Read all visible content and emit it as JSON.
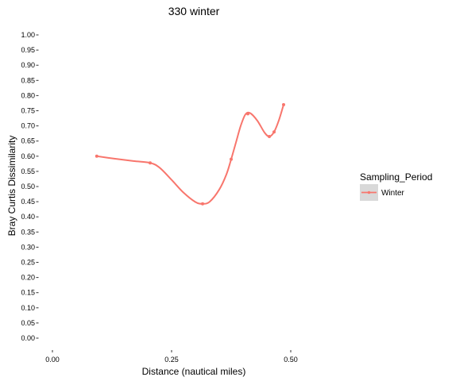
{
  "chart_data": {
    "type": "line",
    "title": "330 winter",
    "xlabel": "Distance (nautical miles)",
    "ylabel": "Bray Curtis Dissimilarity",
    "xlim": [
      0,
      0.5
    ],
    "ylim": [
      0,
      1
    ],
    "x_ticks": [
      {
        "value": 0.0,
        "label": "0.00"
      },
      {
        "value": 0.25,
        "label": "0.25"
      },
      {
        "value": 0.5,
        "label": "0.50"
      }
    ],
    "y_ticks": [
      {
        "value": 0.0,
        "label": "0.00"
      },
      {
        "value": 0.05,
        "label": "0.05"
      },
      {
        "value": 0.1,
        "label": "0.10"
      },
      {
        "value": 0.15,
        "label": "0.15"
      },
      {
        "value": 0.2,
        "label": "0.20"
      },
      {
        "value": 0.25,
        "label": "0.25"
      },
      {
        "value": 0.3,
        "label": "0.30"
      },
      {
        "value": 0.35,
        "label": "0.35"
      },
      {
        "value": 0.4,
        "label": "0.40"
      },
      {
        "value": 0.45,
        "label": "0.45"
      },
      {
        "value": 0.5,
        "label": "0.50"
      },
      {
        "value": 0.55,
        "label": "0.55"
      },
      {
        "value": 0.6,
        "label": "0.60"
      },
      {
        "value": 0.65,
        "label": "0.65"
      },
      {
        "value": 0.7,
        "label": "0.70"
      },
      {
        "value": 0.75,
        "label": "0.75"
      },
      {
        "value": 0.8,
        "label": "0.80"
      },
      {
        "value": 0.85,
        "label": "0.85"
      },
      {
        "value": 0.9,
        "label": "0.90"
      },
      {
        "value": 0.95,
        "label": "0.95"
      },
      {
        "value": 1.0,
        "label": "1.00"
      }
    ],
    "grid": false,
    "legend": {
      "title": "Sampling_Period",
      "placement": "right",
      "entries": [
        {
          "label": "Winter",
          "color": "#f8766d"
        }
      ]
    },
    "series": [
      {
        "name": "Winter",
        "color": "#f8766d",
        "points": [
          {
            "x": 0.093,
            "y": 0.6
          },
          {
            "x": 0.205,
            "y": 0.578
          },
          {
            "x": 0.315,
            "y": 0.443
          },
          {
            "x": 0.375,
            "y": 0.59
          },
          {
            "x": 0.41,
            "y": 0.74
          },
          {
            "x": 0.455,
            "y": 0.665
          },
          {
            "x": 0.465,
            "y": 0.68
          },
          {
            "x": 0.485,
            "y": 0.77
          }
        ],
        "curve": [
          {
            "x": 0.093,
            "y": 0.6
          },
          {
            "x": 0.13,
            "y": 0.592
          },
          {
            "x": 0.17,
            "y": 0.584
          },
          {
            "x": 0.205,
            "y": 0.578
          },
          {
            "x": 0.225,
            "y": 0.562
          },
          {
            "x": 0.25,
            "y": 0.522
          },
          {
            "x": 0.275,
            "y": 0.48
          },
          {
            "x": 0.3,
            "y": 0.449
          },
          {
            "x": 0.315,
            "y": 0.443
          },
          {
            "x": 0.33,
            "y": 0.45
          },
          {
            "x": 0.35,
            "y": 0.49
          },
          {
            "x": 0.365,
            "y": 0.54
          },
          {
            "x": 0.375,
            "y": 0.59
          },
          {
            "x": 0.385,
            "y": 0.645
          },
          {
            "x": 0.395,
            "y": 0.7
          },
          {
            "x": 0.405,
            "y": 0.738
          },
          {
            "x": 0.415,
            "y": 0.742
          },
          {
            "x": 0.43,
            "y": 0.717
          },
          {
            "x": 0.445,
            "y": 0.678
          },
          {
            "x": 0.455,
            "y": 0.665
          },
          {
            "x": 0.465,
            "y": 0.68
          },
          {
            "x": 0.475,
            "y": 0.718
          },
          {
            "x": 0.485,
            "y": 0.77
          }
        ]
      }
    ]
  }
}
